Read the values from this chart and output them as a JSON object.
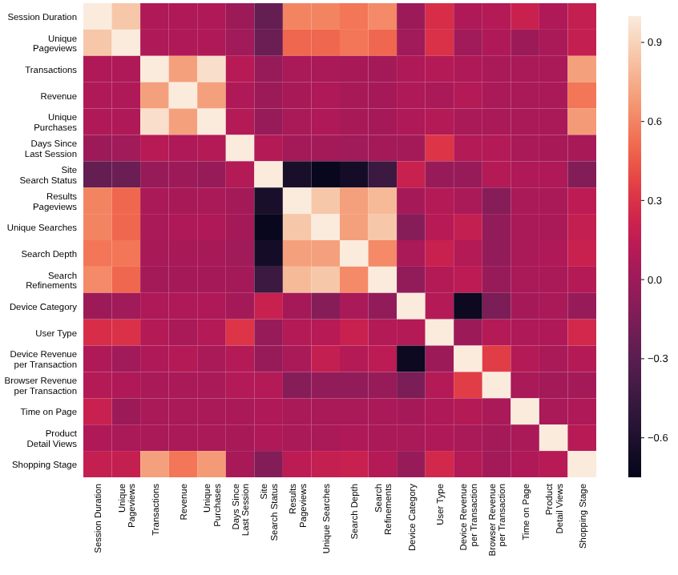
{
  "chart_data": {
    "type": "heatmap",
    "categories": [
      "Session Duration",
      "Unique\nPageviews",
      "Transactions",
      "Revenue",
      "Unique\nPurchases",
      "Days Since\nLast Session",
      "Site\nSearch Status",
      "Results\nPageviews",
      "Unique Searches",
      "Search Depth",
      "Search\nRefinements",
      "Device Category",
      "User Type",
      "Device Revenue\nper Transaction",
      "Browser Revenue\nper Transaction",
      "Time on Page",
      "Product\nDetail Views",
      "Shopping Stage"
    ],
    "y_categories": [
      "Session Duration",
      "Unique\nPageviews",
      "Transactions",
      "Revenue",
      "Unique\nPurchases",
      "Days Since\nLast Session",
      "Site\nSearch Status",
      "Results\nPageviews",
      "Unique Searches",
      "Search Depth",
      "Search\nRefinements",
      "Device Category",
      "User Type",
      "Device Revenue\nper Transaction",
      "Browser Revenue\nper Transaction",
      "Time on Page",
      "Product\nDetail Views",
      "Shopping Stage"
    ],
    "cells": [
      [
        1,
        0.85,
        0.08,
        0.08,
        0.08,
        0,
        -0.25,
        0.6,
        0.6,
        0.55,
        0.62,
        0,
        0.28,
        0.08,
        0.1,
        0.2,
        0.08,
        0.18
      ],
      [
        0.85,
        1,
        0.08,
        0.08,
        0.08,
        0.02,
        -0.22,
        0.5,
        0.5,
        0.55,
        0.5,
        0.02,
        0.3,
        0.02,
        0.08,
        0,
        0.06,
        0.18
      ],
      [
        0.08,
        0.08,
        1,
        0.7,
        0.95,
        0.12,
        -0.02,
        0.06,
        0.06,
        0.05,
        0.03,
        0.08,
        0.1,
        0.08,
        0.06,
        0.06,
        0.06,
        0.7
      ],
      [
        0.08,
        0.08,
        0.7,
        1,
        0.7,
        0.08,
        0,
        0.05,
        0.08,
        0.05,
        0.04,
        0.08,
        0.06,
        0.1,
        0.06,
        0.06,
        0.06,
        0.55
      ],
      [
        0.08,
        0.08,
        0.95,
        0.7,
        1,
        0.1,
        -0.02,
        0.06,
        0.08,
        0.05,
        0.04,
        0.08,
        0.1,
        0.06,
        0.06,
        0.06,
        0.06,
        0.68
      ],
      [
        0,
        0.02,
        0.12,
        0.08,
        0.1,
        1,
        0.1,
        0.03,
        0.03,
        0.02,
        0.03,
        0.03,
        0.32,
        0.1,
        0.1,
        0.06,
        0.05,
        0.05
      ],
      [
        -0.25,
        -0.22,
        -0.02,
        0,
        -0.02,
        0.1,
        1,
        -0.62,
        -0.72,
        -0.65,
        -0.45,
        0.2,
        -0.02,
        -0.02,
        0.1,
        0.08,
        0.08,
        -0.12
      ],
      [
        0.6,
        0.5,
        0.06,
        0.05,
        0.06,
        0.03,
        -0.62,
        1,
        0.85,
        0.7,
        0.8,
        0.04,
        0.1,
        0.06,
        -0.1,
        0.06,
        0.06,
        0.14
      ],
      [
        0.6,
        0.5,
        0.06,
        0.08,
        0.08,
        0.03,
        -0.72,
        0.85,
        1,
        0.7,
        0.85,
        -0.1,
        0.12,
        0.18,
        -0.05,
        0.06,
        0.06,
        0.18
      ],
      [
        0.55,
        0.55,
        0.05,
        0.05,
        0.05,
        0.02,
        -0.65,
        0.7,
        0.7,
        1,
        0.62,
        0.06,
        0.2,
        0.1,
        -0.05,
        0.06,
        0.08,
        0.2
      ],
      [
        0.62,
        0.5,
        0.03,
        0.04,
        0.04,
        0.03,
        -0.45,
        0.8,
        0.85,
        0.62,
        1,
        -0.05,
        0.1,
        0.14,
        -0.02,
        0.06,
        0.06,
        0.1
      ],
      [
        0,
        0.02,
        0.08,
        0.08,
        0.08,
        0.03,
        0.2,
        0.04,
        -0.1,
        0.06,
        -0.05,
        1,
        0.1,
        -0.7,
        -0.15,
        0.04,
        0.06,
        -0.02
      ],
      [
        0.28,
        0.3,
        0.1,
        0.06,
        0.1,
        0.32,
        -0.02,
        0.1,
        0.12,
        0.2,
        0.1,
        0.1,
        1,
        0,
        0.1,
        0.08,
        0.08,
        0.25
      ],
      [
        0.08,
        0.02,
        0.08,
        0.1,
        0.06,
        0.1,
        -0.02,
        0.06,
        0.18,
        0.1,
        0.14,
        -0.7,
        0,
        1,
        0.35,
        0.1,
        0.06,
        0.1
      ],
      [
        0.1,
        0.08,
        0.06,
        0.06,
        0.06,
        0.1,
        0.1,
        -0.1,
        -0.05,
        -0.05,
        -0.02,
        -0.15,
        0.1,
        0.35,
        1,
        0.06,
        0.03,
        0.03
      ],
      [
        0.2,
        0,
        0.06,
        0.06,
        0.06,
        0.06,
        0.08,
        0.06,
        0.06,
        0.06,
        0.06,
        0.04,
        0.08,
        0.1,
        0.06,
        1,
        0.06,
        0.08
      ],
      [
        0.08,
        0.06,
        0.06,
        0.06,
        0.06,
        0.05,
        0.08,
        0.06,
        0.06,
        0.08,
        0.06,
        0.06,
        0.08,
        0.06,
        0.03,
        0.06,
        1,
        0.12
      ],
      [
        0.18,
        0.18,
        0.7,
        0.55,
        0.68,
        0.05,
        -0.12,
        0.14,
        0.18,
        0.2,
        0.1,
        -0.02,
        0.25,
        0.1,
        0.03,
        0.08,
        0.12,
        1
      ]
    ],
    "clim": [
      -0.75,
      1.0
    ],
    "cticks": [
      {
        "value": -0.6,
        "label": "−0.6"
      },
      {
        "value": -0.3,
        "label": "−0.3"
      },
      {
        "value": 0,
        "label": "0.0"
      },
      {
        "value": 0.3,
        "label": "0.3"
      },
      {
        "value": 0.6,
        "label": "0.6"
      },
      {
        "value": 0.9,
        "label": "0.9"
      }
    ]
  }
}
